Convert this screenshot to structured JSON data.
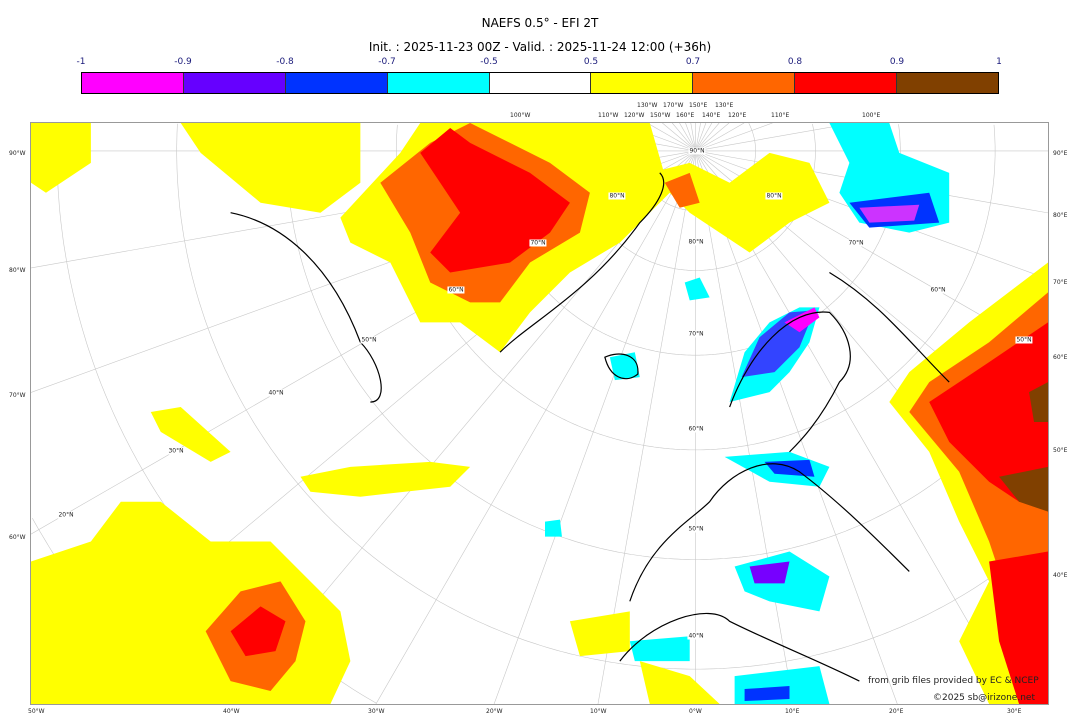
{
  "title": "NAEFS 0.5° - EFI 2T",
  "subtitle": "Init. : 2025-11-23 00Z - Valid. : 2025-11-24 12:00 (+36h)",
  "colorbar": {
    "ticks": [
      "-1",
      "-0.9",
      "-0.8",
      "-0.7",
      "-0.5",
      "0.5",
      "0.7",
      "0.8",
      "0.9",
      "1"
    ],
    "colors": [
      "#ff00ff",
      "#6600ff",
      "#0033ff",
      "#00ffff",
      "#ffffff",
      "#ffff00",
      "#ff6600",
      "#ff0000",
      "#804000"
    ]
  },
  "map": {
    "projection": "polar stereographic",
    "top_labels": [
      "100°W",
      "110°W",
      "120°W",
      "130°W",
      "150°W",
      "170°W",
      "160°E",
      "150°E",
      "140°E",
      "130°E",
      "120°E",
      "110°E",
      "100°E"
    ],
    "left_labels": [
      "90°W",
      "80°W",
      "70°W",
      "60°W"
    ],
    "right_labels": [
      "90°E",
      "80°E",
      "70°E",
      "60°E",
      "50°E",
      "40°E"
    ],
    "bottom_labels": [
      "50°W",
      "40°W",
      "30°W",
      "20°W",
      "10°W",
      "0°W",
      "10°E",
      "20°E",
      "30°E"
    ],
    "lat_labels": [
      "90°N",
      "80°N",
      "70°N",
      "60°N",
      "50°N",
      "40°N",
      "30°N",
      "20°N",
      "80°N",
      "70°N",
      "60°N",
      "50°N",
      "40°N",
      "80°N",
      "70°N",
      "60°N",
      "50°N"
    ]
  },
  "credits": {
    "source": "from grib files provided by EC & NCEP",
    "copyright": "©2025 sb@irizone.net"
  }
}
